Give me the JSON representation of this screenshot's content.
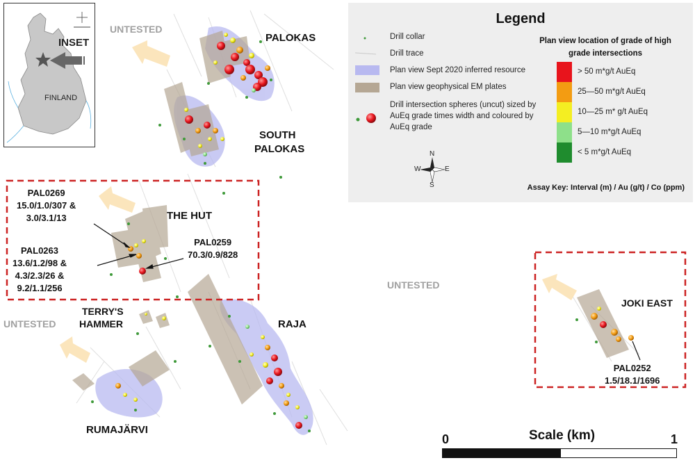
{
  "labels": {
    "palokas": "PALOKAS",
    "south_palokas_1": "SOUTH",
    "south_palokas_2": "PALOKAS",
    "the_hut": "THE HUT",
    "terrys_hammer_1": "TERRY'S",
    "terrys_hammer_2": "HAMMER",
    "raja": "RAJA",
    "rumajarvi": "RUMAJÄRVI",
    "joki_east": "JOKI EAST",
    "untested_1": "UNTESTED",
    "untested_2": "UNTESTED",
    "untested_3": "UNTESTED"
  },
  "annotations": {
    "pal0269": [
      "PAL0269",
      "15.0/1.0/307 &",
      "3.0/3.1/13"
    ],
    "pal0263": [
      "PAL0263",
      "13.6/1.2/98 &",
      "4.3/2.3/26 &",
      "9.2/1.1/256"
    ],
    "pal0259": [
      "PAL0259",
      "70.3/0.9/828"
    ],
    "pal0252": [
      "PAL0252",
      "1.5/18.1/1696"
    ]
  },
  "legend": {
    "title": "Legend",
    "items": {
      "drill_collar": "Drill collar",
      "drill_trace": "Drill trace",
      "resource": "Plan view Sept 2020 inferred resource",
      "em_plates": "Plan view geophysical EM plates",
      "spheres_1": "Drill intersection spheres (uncut) sized by",
      "spheres_2": "AuEq grade times width and coloured by",
      "spheres_3": "AuEq grade"
    },
    "grade_title_1": "Plan view location of grade of high",
    "grade_title_2": "grade intersections",
    "grades": [
      {
        "label": "> 50  m*g/t  AuEq",
        "color": "#e8141c"
      },
      {
        "label": "25—50 m*g/t AuEq",
        "color": "#f39c12"
      },
      {
        "label": "10—25 m* g/t AuEq",
        "color": "#f4ee22"
      },
      {
        "label": "5—10 m*g/t AuEq",
        "color": "#8ee08a"
      },
      {
        "label": "< 5 m*g/t AuEq",
        "color": "#1f8c2e"
      }
    ],
    "assay_key": "Assay Key: Interval (m) / Au (g/t) / Co (ppm)",
    "compass": {
      "n": "N",
      "s": "S",
      "e": "E",
      "w": "W"
    }
  },
  "inset": {
    "label": "INSET",
    "country": "FINLAND"
  },
  "scale": {
    "title": "Scale (km)",
    "min": "0",
    "max": "1"
  },
  "colors": {
    "resource": "#b8b9f0",
    "em_plate": "#b5a794",
    "arrow": "#fbe4b8",
    "box": "#cc2222",
    "untested": "#a0a0a0"
  }
}
